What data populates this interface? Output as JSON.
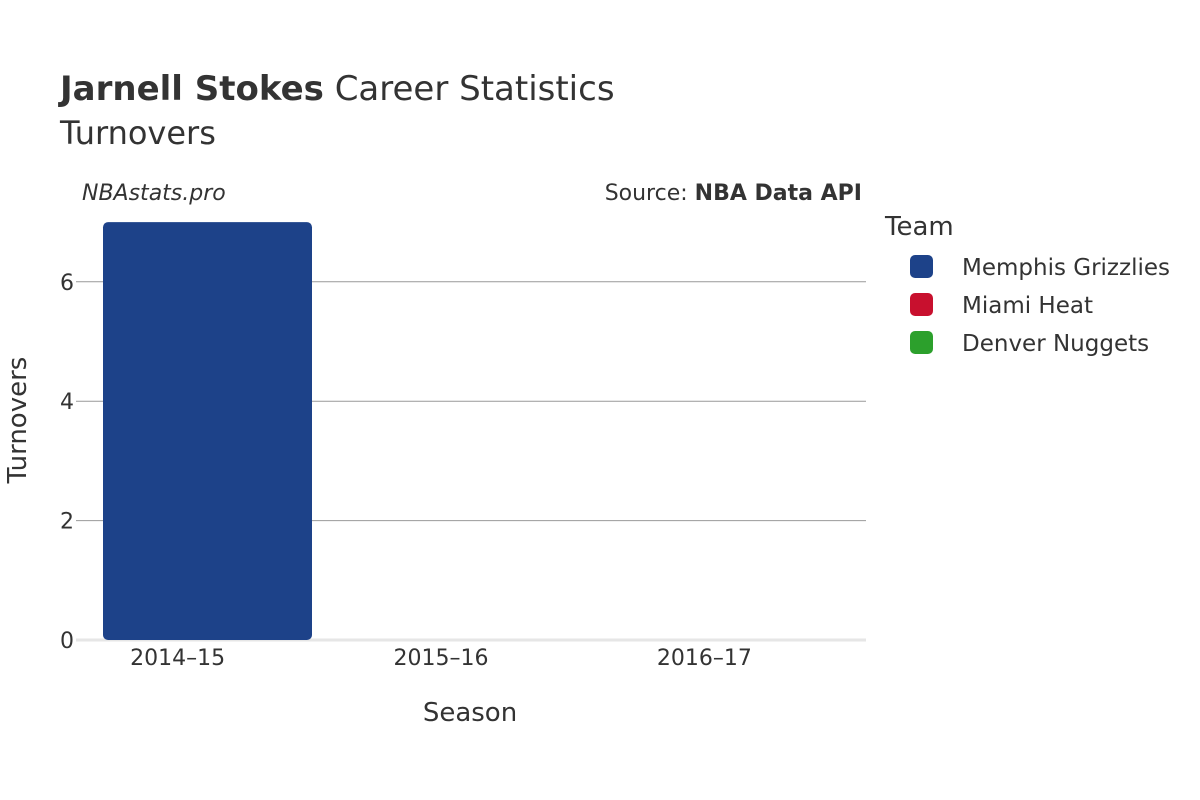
{
  "title": {
    "player": "Jarnell Stokes",
    "suffix": "Career Statistics",
    "subtitle": "Turnovers"
  },
  "brand": "NBAstats.pro",
  "source": {
    "prefix": "Source: ",
    "name": "NBA Data API"
  },
  "legend": {
    "title": "Team",
    "items": [
      {
        "label": "Memphis Grizzlies",
        "color": "#1d4289"
      },
      {
        "label": "Miami Heat",
        "color": "#c8102e"
      },
      {
        "label": "Denver Nuggets",
        "color": "#2ca02c"
      }
    ]
  },
  "chart_data": {
    "type": "bar",
    "title": "Jarnell Stokes Career Statistics",
    "subtitle": "Turnovers",
    "xlabel": "Season",
    "ylabel": "Turnovers",
    "categories": [
      "2014–15",
      "2015–16",
      "2016–17"
    ],
    "series": [
      {
        "name": "Memphis Grizzlies",
        "color": "#1d4289",
        "values": [
          7,
          null,
          null
        ]
      },
      {
        "name": "Miami Heat",
        "color": "#c8102e",
        "values": [
          null,
          0,
          null
        ]
      },
      {
        "name": "Denver Nuggets",
        "color": "#2ca02c",
        "values": [
          null,
          null,
          0
        ]
      }
    ],
    "yticks": [
      0,
      2,
      4,
      6
    ],
    "ylim": [
      0,
      7.3
    ],
    "grid": true,
    "legend_position": "right"
  }
}
